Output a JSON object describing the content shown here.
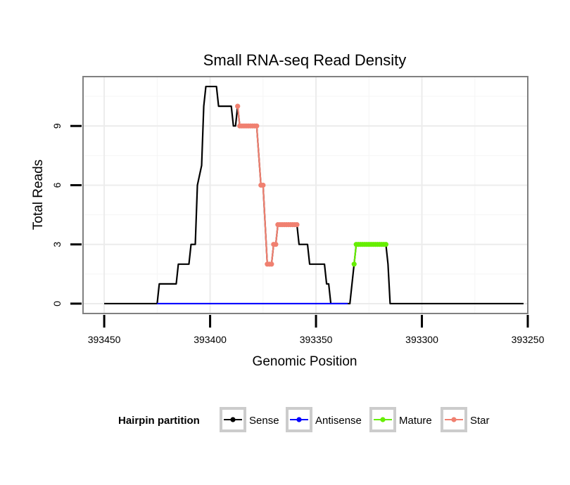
{
  "chart_data": {
    "type": "line",
    "title": "Small RNA-seq Read Density",
    "xlabel": "Genomic Position",
    "ylabel": "Total Reads",
    "x_reversed": true,
    "xlim": [
      393460,
      393250
    ],
    "ylim": [
      -0.5,
      11.5
    ],
    "x_ticks": [
      393450,
      393400,
      393350,
      393300,
      393250
    ],
    "y_ticks": [
      0,
      3,
      6,
      9
    ],
    "grid": true,
    "legend": {
      "title": "Hairpin partition",
      "placement": "bottom",
      "entries": [
        {
          "name": "Sense",
          "color": "#000000"
        },
        {
          "name": "Antisense",
          "color": "#0000ff"
        },
        {
          "name": "Mature",
          "color": "#66ee00"
        },
        {
          "name": "Star",
          "color": "#f08070"
        }
      ]
    },
    "series": [
      {
        "name": "Sense",
        "color": "#000000",
        "points": [
          [
            393450,
            0
          ],
          [
            393425,
            0
          ],
          [
            393424,
            1
          ],
          [
            393416,
            1
          ],
          [
            393415,
            2
          ],
          [
            393410,
            2
          ],
          [
            393409,
            3
          ],
          [
            393407,
            3
          ],
          [
            393406,
            6
          ],
          [
            393404,
            7
          ],
          [
            393403,
            10
          ],
          [
            393402,
            11
          ],
          [
            393397,
            11
          ],
          [
            393396,
            10
          ],
          [
            393390,
            10
          ],
          [
            393389,
            9
          ],
          [
            393388,
            9
          ],
          [
            393387,
            10
          ],
          [
            393386,
            9
          ],
          [
            393378,
            9
          ],
          [
            393376,
            6
          ],
          [
            393375,
            6
          ],
          [
            393373,
            2
          ],
          [
            393371,
            2
          ],
          [
            393370,
            3
          ],
          [
            393369,
            3
          ],
          [
            393368,
            4
          ],
          [
            393359,
            4
          ],
          [
            393358,
            3
          ],
          [
            393354,
            3
          ],
          [
            393353,
            2
          ],
          [
            393346,
            2
          ],
          [
            393345,
            1
          ],
          [
            393344,
            1
          ],
          [
            393343,
            0
          ],
          [
            393334,
            0
          ],
          [
            393333,
            1
          ],
          [
            393332,
            2
          ],
          [
            393331,
            3
          ],
          [
            393317,
            3
          ],
          [
            393316,
            2
          ],
          [
            393315,
            0
          ],
          [
            393252,
            0
          ]
        ]
      },
      {
        "name": "Antisense",
        "color": "#0000ff",
        "points": [
          [
            393425,
            0
          ],
          [
            393335,
            0
          ]
        ]
      },
      {
        "name": "Mature",
        "color": "#66ee00",
        "points": [
          [
            393332,
            2
          ],
          [
            393331,
            3
          ],
          [
            393330,
            3
          ],
          [
            393329,
            3
          ],
          [
            393328,
            3
          ],
          [
            393327,
            3
          ],
          [
            393326,
            3
          ],
          [
            393325,
            3
          ],
          [
            393324,
            3
          ],
          [
            393323,
            3
          ],
          [
            393322,
            3
          ],
          [
            393321,
            3
          ],
          [
            393320,
            3
          ],
          [
            393319,
            3
          ],
          [
            393318,
            3
          ],
          [
            393317,
            3
          ]
        ]
      },
      {
        "name": "Star",
        "color": "#f08070",
        "points": [
          [
            393387,
            10
          ],
          [
            393386,
            9
          ],
          [
            393385,
            9
          ],
          [
            393384,
            9
          ],
          [
            393383,
            9
          ],
          [
            393382,
            9
          ],
          [
            393381,
            9
          ],
          [
            393380,
            9
          ],
          [
            393379,
            9
          ],
          [
            393378,
            9
          ],
          [
            393376,
            6
          ],
          [
            393375,
            6
          ],
          [
            393373,
            2
          ],
          [
            393372,
            2
          ],
          [
            393371,
            2
          ],
          [
            393370,
            3
          ],
          [
            393369,
            3
          ],
          [
            393368,
            4
          ],
          [
            393367,
            4
          ],
          [
            393366,
            4
          ],
          [
            393365,
            4
          ],
          [
            393364,
            4
          ],
          [
            393363,
            4
          ],
          [
            393362,
            4
          ],
          [
            393361,
            4
          ],
          [
            393360,
            4
          ],
          [
            393359,
            4
          ]
        ]
      }
    ]
  }
}
